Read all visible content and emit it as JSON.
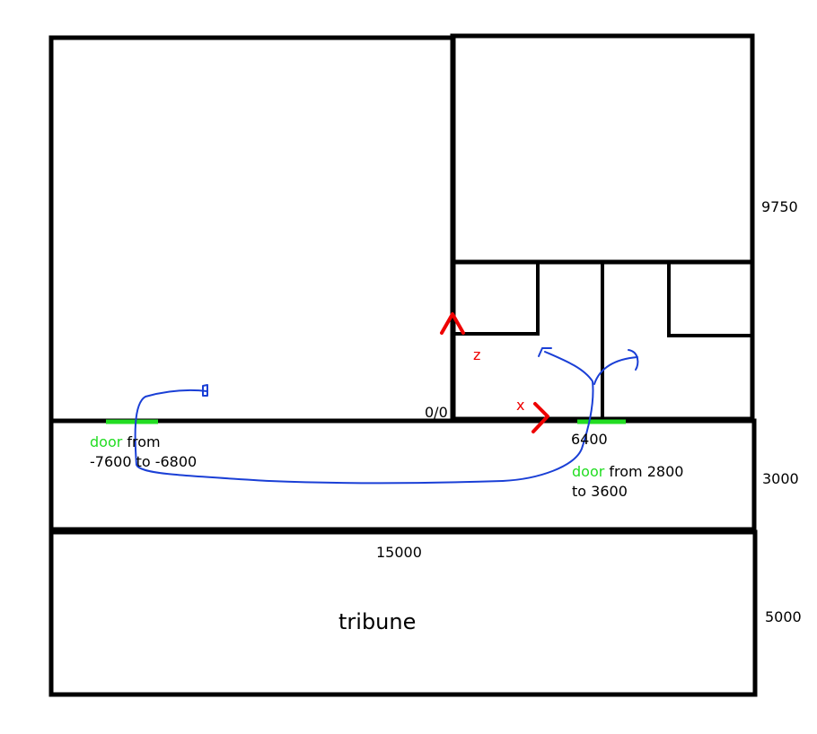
{
  "labels": {
    "dim_top_right": "9750",
    "dim_mid_right": "3000",
    "dim_bottom_right": "5000",
    "dim_bottom_width": "15000",
    "origin": "0/0",
    "x_mark": "6400",
    "tribune": "tribune",
    "z_axis": "z",
    "x_axis": "x"
  },
  "doors": [
    {
      "word": "door",
      "rest": " from",
      "line2": "-7600 to -6800"
    },
    {
      "word": "door",
      "rest": " from 2800",
      "line2": "to 3600"
    }
  ],
  "colors": {
    "wall": "#000000",
    "door": "#22dd22",
    "axis": "#ee0000",
    "path": "#1a3fd6"
  }
}
